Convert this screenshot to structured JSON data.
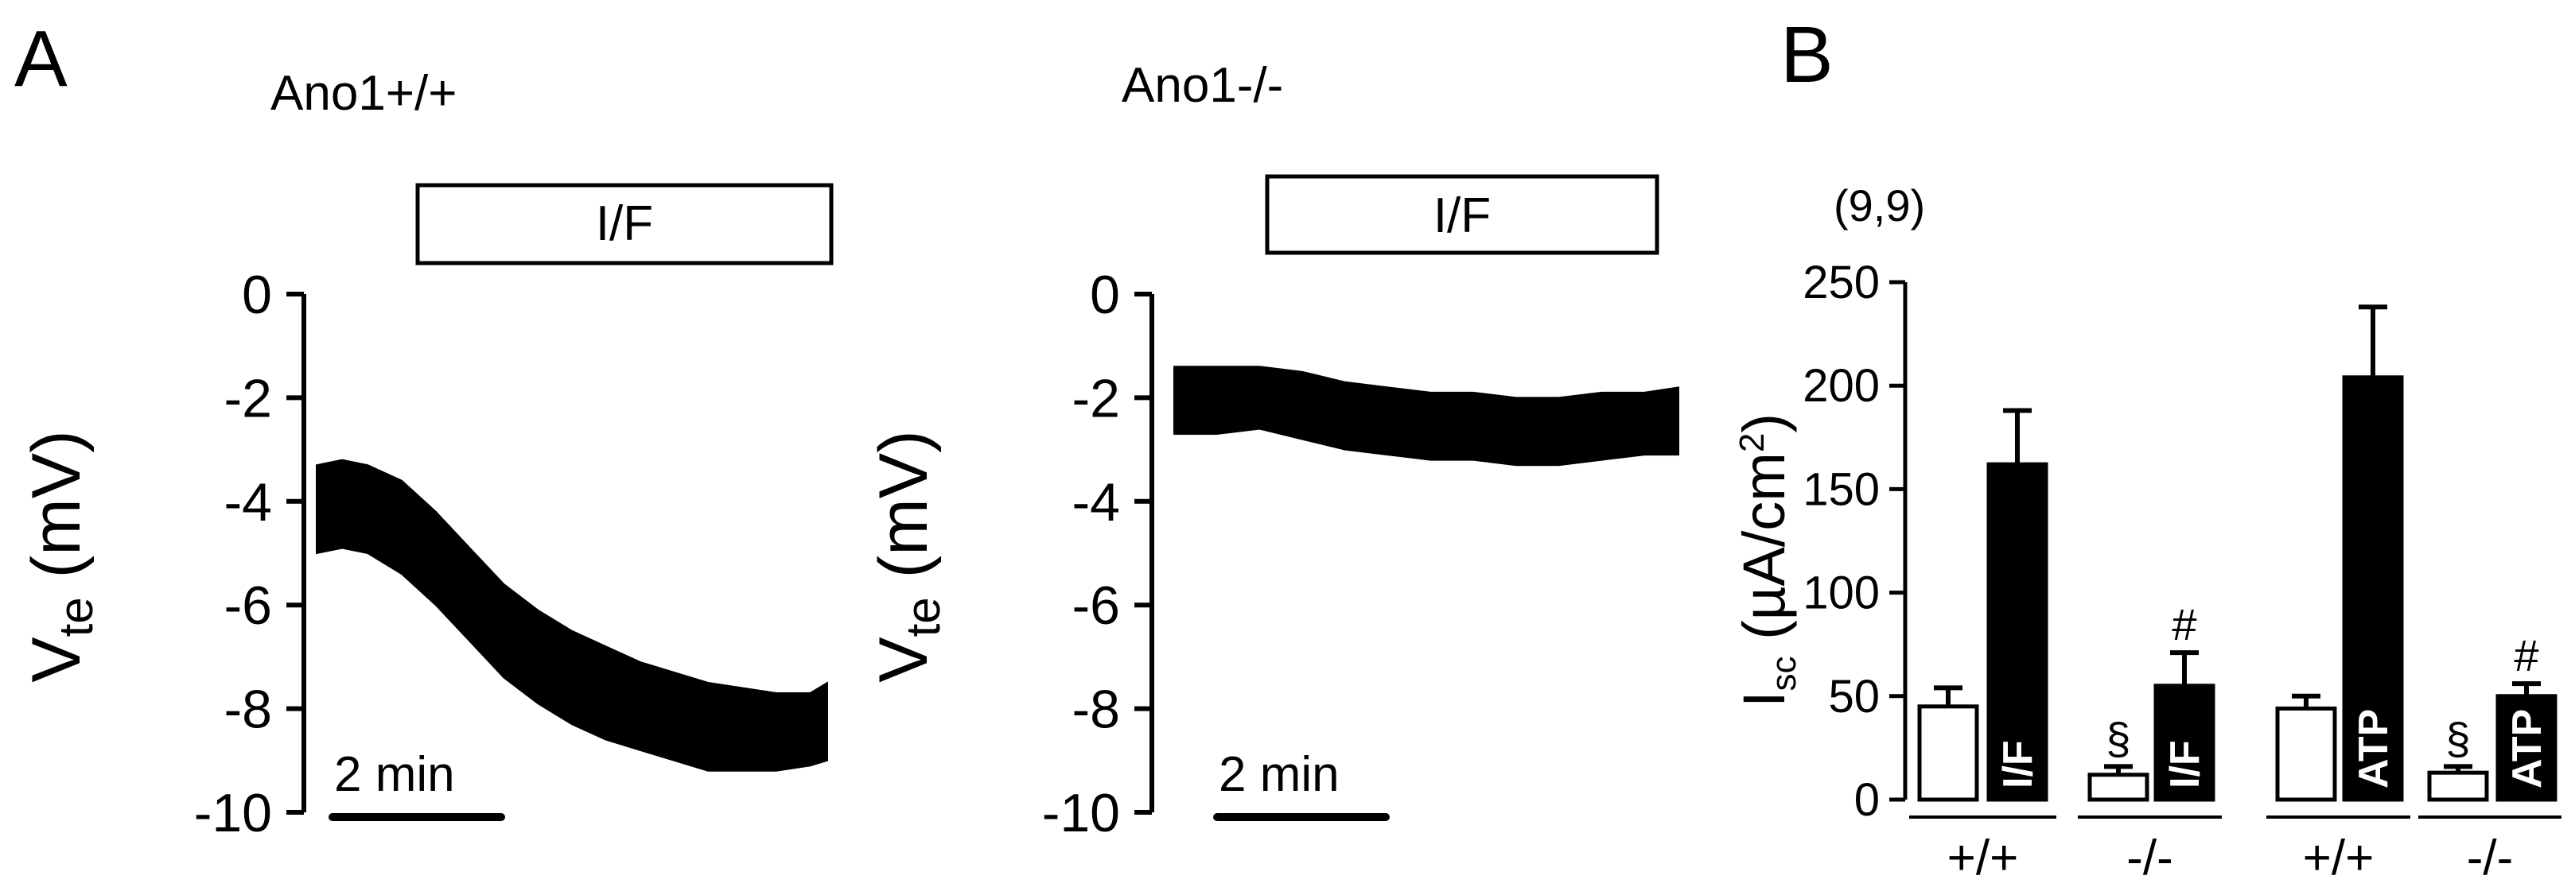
{
  "panels": {
    "a": {
      "letter": "A",
      "left": {
        "title": "Ano1+/+",
        "stimulus_label": "I/F",
        "ylabel_main": "V",
        "ylabel_sub": "te",
        "ylabel_unit": " (mV)",
        "scalebar_label": "2 min"
      },
      "right": {
        "title": "Ano1-/-",
        "stimulus_label": "I/F",
        "ylabel_main": "V",
        "ylabel_sub": "te",
        "ylabel_unit": " (mV)",
        "scalebar_label": "2 min"
      }
    },
    "b": {
      "letter": "B",
      "n_label": "(9,9)",
      "ylabel_main": "I",
      "ylabel_sub": "sc",
      "ylabel_unit_pre": " (µA/cm",
      "ylabel_unit_sup": "2",
      "ylabel_unit_post": ")",
      "group_labels": [
        "+/+",
        "-/-",
        "+/+",
        "-/-"
      ]
    }
  },
  "chart_data": [
    {
      "type": "line",
      "panel": "A-left",
      "title": "Ano1+/+",
      "ylabel": "Vte (mV)",
      "ylim": [
        -10,
        0
      ],
      "yticks": [
        0,
        -2,
        -4,
        -6,
        -8,
        -10
      ],
      "scalebar": "2 min",
      "stimulus": "I/F",
      "series": [
        {
          "x": [
            0,
            0.3,
            0.6,
            1.0,
            1.4,
            1.8,
            2.2,
            2.6,
            3.0,
            3.4,
            3.8,
            4.2,
            4.6,
            5.0,
            5.4,
            5.8,
            6.0
          ],
          "upper": [
            -3.3,
            -3.2,
            -3.3,
            -3.6,
            -4.2,
            -4.9,
            -5.6,
            -6.1,
            -6.5,
            -6.8,
            -7.1,
            -7.3,
            -7.5,
            -7.6,
            -7.7,
            -7.7,
            -7.5
          ],
          "lower": [
            -5.0,
            -4.9,
            -5.0,
            -5.4,
            -6.0,
            -6.7,
            -7.4,
            -7.9,
            -8.3,
            -8.6,
            -8.8,
            -9.0,
            -9.2,
            -9.2,
            -9.2,
            -9.1,
            -9.0
          ]
        }
      ]
    },
    {
      "type": "line",
      "panel": "A-right",
      "title": "Ano1-/-",
      "ylabel": "Vte (mV)",
      "ylim": [
        -10,
        0
      ],
      "yticks": [
        0,
        -2,
        -4,
        -6,
        -8,
        -10
      ],
      "scalebar": "2 min",
      "stimulus": "I/F",
      "series": [
        {
          "x": [
            0,
            0.5,
            1.0,
            1.5,
            2.0,
            2.5,
            3.0,
            3.5,
            4.0,
            4.5,
            5.0,
            5.5,
            5.9
          ],
          "upper": [
            -1.4,
            -1.4,
            -1.4,
            -1.5,
            -1.7,
            -1.8,
            -1.9,
            -1.9,
            -2.0,
            -2.0,
            -1.9,
            -1.9,
            -1.8
          ],
          "lower": [
            -2.7,
            -2.7,
            -2.6,
            -2.8,
            -3.0,
            -3.1,
            -3.2,
            -3.2,
            -3.3,
            -3.3,
            -3.2,
            -3.1,
            -3.1
          ]
        }
      ]
    },
    {
      "type": "bar",
      "panel": "B",
      "ylabel": "Isc (µA/cm2)",
      "ylim": [
        0,
        250
      ],
      "yticks": [
        0,
        50,
        100,
        150,
        200,
        250
      ],
      "annotation": "(9,9)",
      "groups": [
        "+/+",
        "-/-",
        "+/+",
        "-/-"
      ],
      "bars": [
        {
          "group": 0,
          "fill": "white",
          "value": 45,
          "error": 9,
          "label": "",
          "mark": ""
        },
        {
          "group": 0,
          "fill": "black",
          "value": 162,
          "error": 26,
          "label": "I/F",
          "mark": ""
        },
        {
          "group": 1,
          "fill": "white",
          "value": 12,
          "error": 4,
          "label": "",
          "mark": "§"
        },
        {
          "group": 1,
          "fill": "black",
          "value": 55,
          "error": 16,
          "label": "I/F",
          "mark": "#"
        },
        {
          "group": 2,
          "fill": "white",
          "value": 44,
          "error": 6,
          "label": "",
          "mark": ""
        },
        {
          "group": 2,
          "fill": "black",
          "value": 204,
          "error": 34,
          "label": "ATP",
          "mark": ""
        },
        {
          "group": 3,
          "fill": "white",
          "value": 13,
          "error": 3,
          "label": "",
          "mark": "§"
        },
        {
          "group": 3,
          "fill": "black",
          "value": 50,
          "error": 6,
          "label": "ATP",
          "mark": "#"
        }
      ]
    }
  ]
}
